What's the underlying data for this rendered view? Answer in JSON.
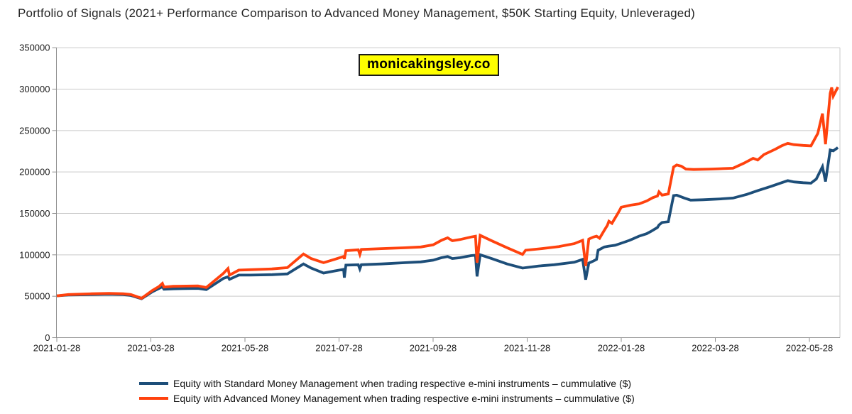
{
  "page": {
    "title": "Portfolio of Signals (2021+ Performance Comparison to Advanced Money Management, $50K Starting Equity, Unleveraged)",
    "watermark": "monicakingsley.co"
  },
  "colors": {
    "standard_line": "#1d4e79",
    "advanced_line": "#ff420e",
    "gridline": "#c9c9c9",
    "axis_line": "#8f8f8f",
    "watermark_bg": "#ffff00",
    "watermark_border": "#1a1a1a",
    "text": "#1a1a1a"
  },
  "legend": [
    {
      "label": "Equity with Standard Money Management when trading respective e-mini instruments – cummulative ($)",
      "color": "#1d4e79"
    },
    {
      "label": "Equity with Advanced Money Management when trading respective e-mini instruments – cummulative ($)",
      "color": "#ff420e"
    }
  ],
  "chart_data": {
    "type": "line",
    "title": "Portfolio of Signals (2021+ Performance Comparison to Advanced Money Management, $50K Starting Equity, Unleveraged)",
    "watermark": "monicakingsley.co",
    "grid": "horizontal",
    "legend_position": "bottom",
    "xlabel": "",
    "ylabel": "",
    "y_axis": {
      "min": 0,
      "max": 350000,
      "step": 50000,
      "tick_labels": [
        "0",
        "50000",
        "100000",
        "150000",
        "200000",
        "250000",
        "300000",
        "350000"
      ]
    },
    "x_axis": {
      "start": "2021-01-28",
      "end": "2022-06-17",
      "tick_labels": [
        "2021-01-28",
        "2021-03-28",
        "2021-05-28",
        "2021-07-28",
        "2021-09-28",
        "2021-11-28",
        "2022-01-28",
        "2022-03-28",
        "2022-05-28"
      ]
    },
    "series": [
      {
        "name": "Equity with Standard Money Management when trading respective e-mini instruments – cummulative ($)",
        "color": "#1d4e79",
        "points": [
          [
            "2021-01-28",
            50500
          ],
          [
            "2021-02-05",
            51500
          ],
          [
            "2021-02-20",
            52000
          ],
          [
            "2021-03-01",
            52500
          ],
          [
            "2021-03-10",
            52000
          ],
          [
            "2021-03-15",
            51000
          ],
          [
            "2021-03-22",
            47000
          ],
          [
            "2021-03-29",
            55500
          ],
          [
            "2021-04-03",
            59500
          ],
          [
            "2021-04-05",
            61500
          ],
          [
            "2021-04-06",
            58500
          ],
          [
            "2021-04-12",
            59000
          ],
          [
            "2021-04-28",
            59500
          ],
          [
            "2021-05-03",
            58000
          ],
          [
            "2021-05-14",
            71500
          ],
          [
            "2021-05-17",
            73500
          ],
          [
            "2021-05-18",
            70500
          ],
          [
            "2021-05-24",
            75500
          ],
          [
            "2021-06-01",
            75500
          ],
          [
            "2021-06-15",
            76000
          ],
          [
            "2021-06-25",
            77000
          ],
          [
            "2021-07-05",
            89000
          ],
          [
            "2021-07-10",
            84000
          ],
          [
            "2021-07-18",
            78000
          ],
          [
            "2021-07-25",
            80500
          ],
          [
            "2021-07-31",
            82500
          ],
          [
            "2021-08-01",
            72500
          ],
          [
            "2021-08-02",
            87500
          ],
          [
            "2021-08-10",
            88000
          ],
          [
            "2021-08-11",
            83000
          ],
          [
            "2021-08-12",
            88000
          ],
          [
            "2021-08-25",
            89000
          ],
          [
            "2021-09-10",
            90500
          ],
          [
            "2021-09-20",
            91500
          ],
          [
            "2021-09-28",
            93500
          ],
          [
            "2021-10-03",
            96500
          ],
          [
            "2021-10-07",
            98000
          ],
          [
            "2021-10-10",
            95500
          ],
          [
            "2021-10-15",
            96500
          ],
          [
            "2021-10-22",
            99000
          ],
          [
            "2021-10-25",
            99500
          ],
          [
            "2021-10-26",
            74000
          ],
          [
            "2021-10-28",
            100000
          ],
          [
            "2021-11-05",
            95500
          ],
          [
            "2021-11-15",
            89000
          ],
          [
            "2021-11-25",
            84000
          ],
          [
            "2021-12-05",
            86500
          ],
          [
            "2021-12-15",
            88000
          ],
          [
            "2021-12-28",
            91000
          ],
          [
            "2022-01-03",
            94500
          ],
          [
            "2022-01-05",
            70000
          ],
          [
            "2022-01-07",
            90000
          ],
          [
            "2022-01-10",
            92500
          ],
          [
            "2022-01-12",
            94500
          ],
          [
            "2022-01-13",
            105500
          ],
          [
            "2022-01-17",
            109500
          ],
          [
            "2022-01-20",
            110500
          ],
          [
            "2022-01-24",
            111500
          ],
          [
            "2022-01-28",
            114000
          ],
          [
            "2022-02-03",
            117500
          ],
          [
            "2022-02-09",
            122500
          ],
          [
            "2022-02-14",
            125500
          ],
          [
            "2022-02-17",
            128500
          ],
          [
            "2022-02-21",
            133000
          ],
          [
            "2022-02-22",
            136000
          ],
          [
            "2022-02-24",
            139000
          ],
          [
            "2022-02-28",
            140000
          ],
          [
            "2022-03-01",
            171500
          ],
          [
            "2022-03-03",
            172000
          ],
          [
            "2022-03-08",
            168500
          ],
          [
            "2022-03-12",
            166000
          ],
          [
            "2022-03-20",
            166500
          ],
          [
            "2022-04-01",
            167500
          ],
          [
            "2022-04-09",
            168500
          ],
          [
            "2022-04-18",
            173000
          ],
          [
            "2022-04-25",
            177500
          ],
          [
            "2022-05-03",
            182500
          ],
          [
            "2022-05-10",
            187000
          ],
          [
            "2022-05-14",
            189500
          ],
          [
            "2022-05-18",
            188000
          ],
          [
            "2022-05-24",
            187000
          ],
          [
            "2022-05-29",
            186500
          ],
          [
            "2022-06-02",
            191500
          ],
          [
            "2022-06-06",
            206500
          ],
          [
            "2022-06-08",
            188500
          ],
          [
            "2022-06-11",
            226500
          ],
          [
            "2022-06-13",
            225500
          ],
          [
            "2022-06-16",
            229500
          ]
        ]
      },
      {
        "name": "Equity with Advanced Money Management when trading respective e-mini instruments – cummulative ($)",
        "color": "#ff420e",
        "points": [
          [
            "2021-01-28",
            50500
          ],
          [
            "2021-02-05",
            52000
          ],
          [
            "2021-02-20",
            53000
          ],
          [
            "2021-03-01",
            53500
          ],
          [
            "2021-03-10",
            53000
          ],
          [
            "2021-03-15",
            52000
          ],
          [
            "2021-03-22",
            47500
          ],
          [
            "2021-03-29",
            57000
          ],
          [
            "2021-04-03",
            62000
          ],
          [
            "2021-04-05",
            65500
          ],
          [
            "2021-04-06",
            61000
          ],
          [
            "2021-04-12",
            62000
          ],
          [
            "2021-04-28",
            62500
          ],
          [
            "2021-05-03",
            60500
          ],
          [
            "2021-05-14",
            77500
          ],
          [
            "2021-05-17",
            83500
          ],
          [
            "2021-05-18",
            75500
          ],
          [
            "2021-05-24",
            81500
          ],
          [
            "2021-06-01",
            82000
          ],
          [
            "2021-06-15",
            83000
          ],
          [
            "2021-06-25",
            84500
          ],
          [
            "2021-07-05",
            101000
          ],
          [
            "2021-07-10",
            95500
          ],
          [
            "2021-07-18",
            90500
          ],
          [
            "2021-07-25",
            94500
          ],
          [
            "2021-07-31",
            98000
          ],
          [
            "2021-08-01",
            95000
          ],
          [
            "2021-08-02",
            105000
          ],
          [
            "2021-08-10",
            106000
          ],
          [
            "2021-08-11",
            100500
          ],
          [
            "2021-08-12",
            106500
          ],
          [
            "2021-08-25",
            107500
          ],
          [
            "2021-09-10",
            108500
          ],
          [
            "2021-09-20",
            109500
          ],
          [
            "2021-09-28",
            112000
          ],
          [
            "2021-10-03",
            117500
          ],
          [
            "2021-10-07",
            120500
          ],
          [
            "2021-10-10",
            117000
          ],
          [
            "2021-10-15",
            118500
          ],
          [
            "2021-10-22",
            121500
          ],
          [
            "2021-10-25",
            122500
          ],
          [
            "2021-10-26",
            90500
          ],
          [
            "2021-10-28",
            123500
          ],
          [
            "2021-11-05",
            117000
          ],
          [
            "2021-11-15",
            108500
          ],
          [
            "2021-11-25",
            100500
          ],
          [
            "2021-11-27",
            105500
          ],
          [
            "2021-12-07",
            107500
          ],
          [
            "2021-12-18",
            110000
          ],
          [
            "2021-12-28",
            113500
          ],
          [
            "2022-01-03",
            117500
          ],
          [
            "2022-01-05",
            86500
          ],
          [
            "2022-01-07",
            119000
          ],
          [
            "2022-01-10",
            121500
          ],
          [
            "2022-01-12",
            122500
          ],
          [
            "2022-01-14",
            120000
          ],
          [
            "2022-01-17",
            129500
          ],
          [
            "2022-01-19",
            135500
          ],
          [
            "2022-01-20",
            140500
          ],
          [
            "2022-01-22",
            138000
          ],
          [
            "2022-01-26",
            150500
          ],
          [
            "2022-01-28",
            157500
          ],
          [
            "2022-02-04",
            160000
          ],
          [
            "2022-02-09",
            161500
          ],
          [
            "2022-02-14",
            165000
          ],
          [
            "2022-02-18",
            169000
          ],
          [
            "2022-02-21",
            171000
          ],
          [
            "2022-02-22",
            176000
          ],
          [
            "2022-02-24",
            172000
          ],
          [
            "2022-02-28",
            173500
          ],
          [
            "2022-03-01",
            206000
          ],
          [
            "2022-03-03",
            208500
          ],
          [
            "2022-03-06",
            207000
          ],
          [
            "2022-03-09",
            203500
          ],
          [
            "2022-03-14",
            203000
          ],
          [
            "2022-03-25",
            203500
          ],
          [
            "2022-04-09",
            204500
          ],
          [
            "2022-04-16",
            210500
          ],
          [
            "2022-04-22",
            216500
          ],
          [
            "2022-04-25",
            214500
          ],
          [
            "2022-04-29",
            221000
          ],
          [
            "2022-05-06",
            227500
          ],
          [
            "2022-05-10",
            231500
          ],
          [
            "2022-05-14",
            234500
          ],
          [
            "2022-05-18",
            233000
          ],
          [
            "2022-05-24",
            232000
          ],
          [
            "2022-05-29",
            231500
          ],
          [
            "2022-06-03",
            246500
          ],
          [
            "2022-06-06",
            270500
          ],
          [
            "2022-06-08",
            233500
          ],
          [
            "2022-06-11",
            295000
          ],
          [
            "2022-06-12",
            302000
          ],
          [
            "2022-06-13",
            291500
          ],
          [
            "2022-06-16",
            302500
          ]
        ]
      }
    ]
  }
}
